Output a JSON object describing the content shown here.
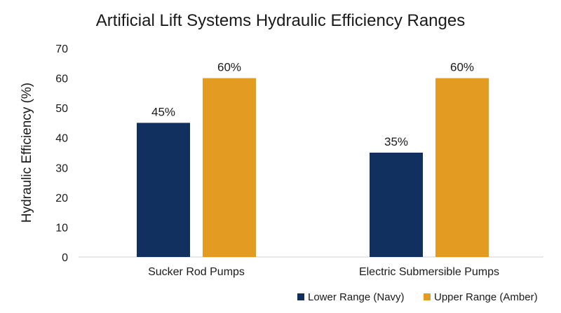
{
  "chart_data": {
    "type": "bar",
    "title": "Artificial Lift Systems Hydraulic Efficiency Ranges",
    "xlabel": "",
    "ylabel": "Hydraulic Efficiency (%)",
    "ylim": [
      0,
      70
    ],
    "yticks": [
      "0",
      "10",
      "20",
      "30",
      "40",
      "50",
      "60",
      "70"
    ],
    "categories": [
      "Sucker Rod Pumps",
      "Electric Submersible Pumps"
    ],
    "series": [
      {
        "name": "Lower Range (Navy)",
        "color": "#12305f",
        "values": [
          45,
          35
        ],
        "labels": [
          "45%",
          "35%"
        ]
      },
      {
        "name": "Upper Range (Amber)",
        "color": "#e39b22",
        "values": [
          60,
          60
        ],
        "labels": [
          "60%",
          "60%"
        ]
      }
    ],
    "grid": false,
    "legend_position": "bottom-right"
  }
}
